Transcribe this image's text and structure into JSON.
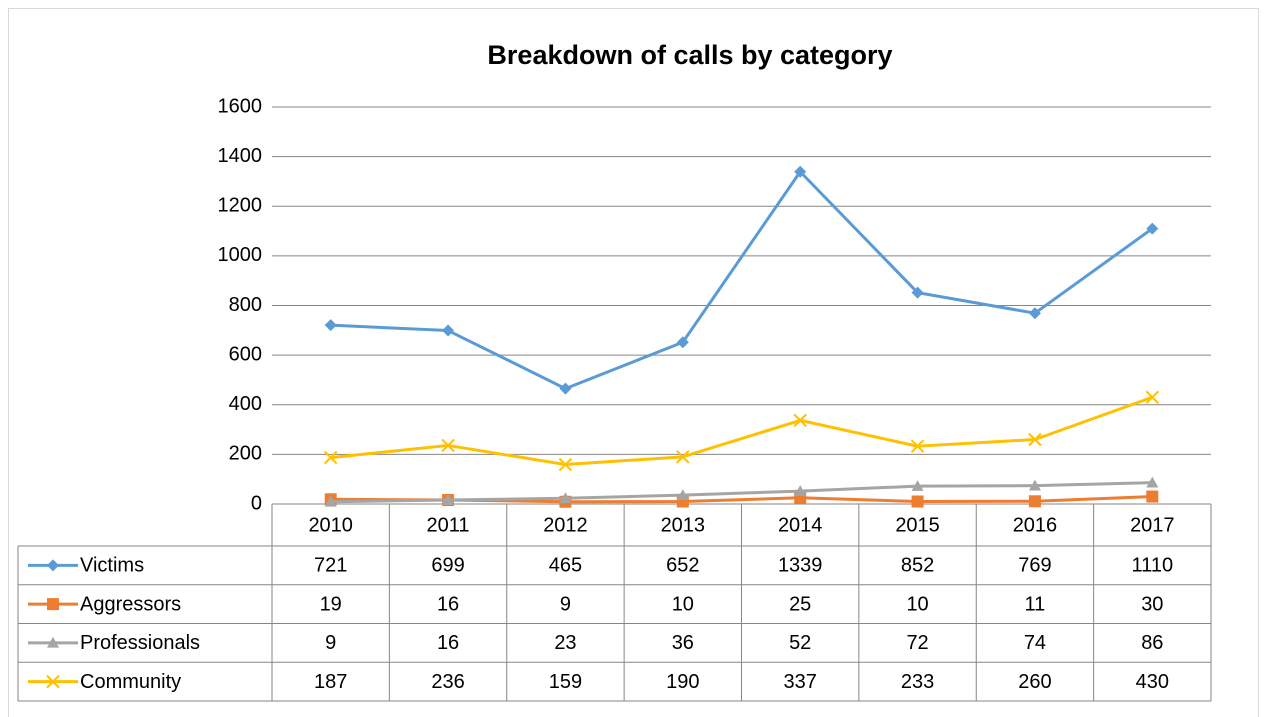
{
  "chart_data": {
    "type": "line",
    "title": "Breakdown of calls by category",
    "categories": [
      "2010",
      "2011",
      "2012",
      "2013",
      "2014",
      "2015",
      "2016",
      "2017"
    ],
    "series": [
      {
        "name": "Victims",
        "color": "#5b9bd5",
        "marker": "diamond",
        "values": [
          721,
          699,
          465,
          652,
          1339,
          852,
          769,
          1110
        ]
      },
      {
        "name": "Aggressors",
        "color": "#ed7d31",
        "marker": "square",
        "values": [
          19,
          16,
          9,
          10,
          25,
          10,
          11,
          30
        ]
      },
      {
        "name": "Professionals",
        "color": "#a5a5a5",
        "marker": "triangle",
        "values": [
          9,
          16,
          23,
          36,
          52,
          72,
          74,
          86
        ]
      },
      {
        "name": "Community",
        "color": "#ffc000",
        "marker": "x",
        "values": [
          187,
          236,
          159,
          190,
          337,
          233,
          260,
          430
        ]
      }
    ],
    "ylim": [
      0,
      1600
    ],
    "yticks": [
      0,
      200,
      400,
      600,
      800,
      1000,
      1200,
      1400,
      1600
    ],
    "grid": true,
    "data_table": true
  }
}
